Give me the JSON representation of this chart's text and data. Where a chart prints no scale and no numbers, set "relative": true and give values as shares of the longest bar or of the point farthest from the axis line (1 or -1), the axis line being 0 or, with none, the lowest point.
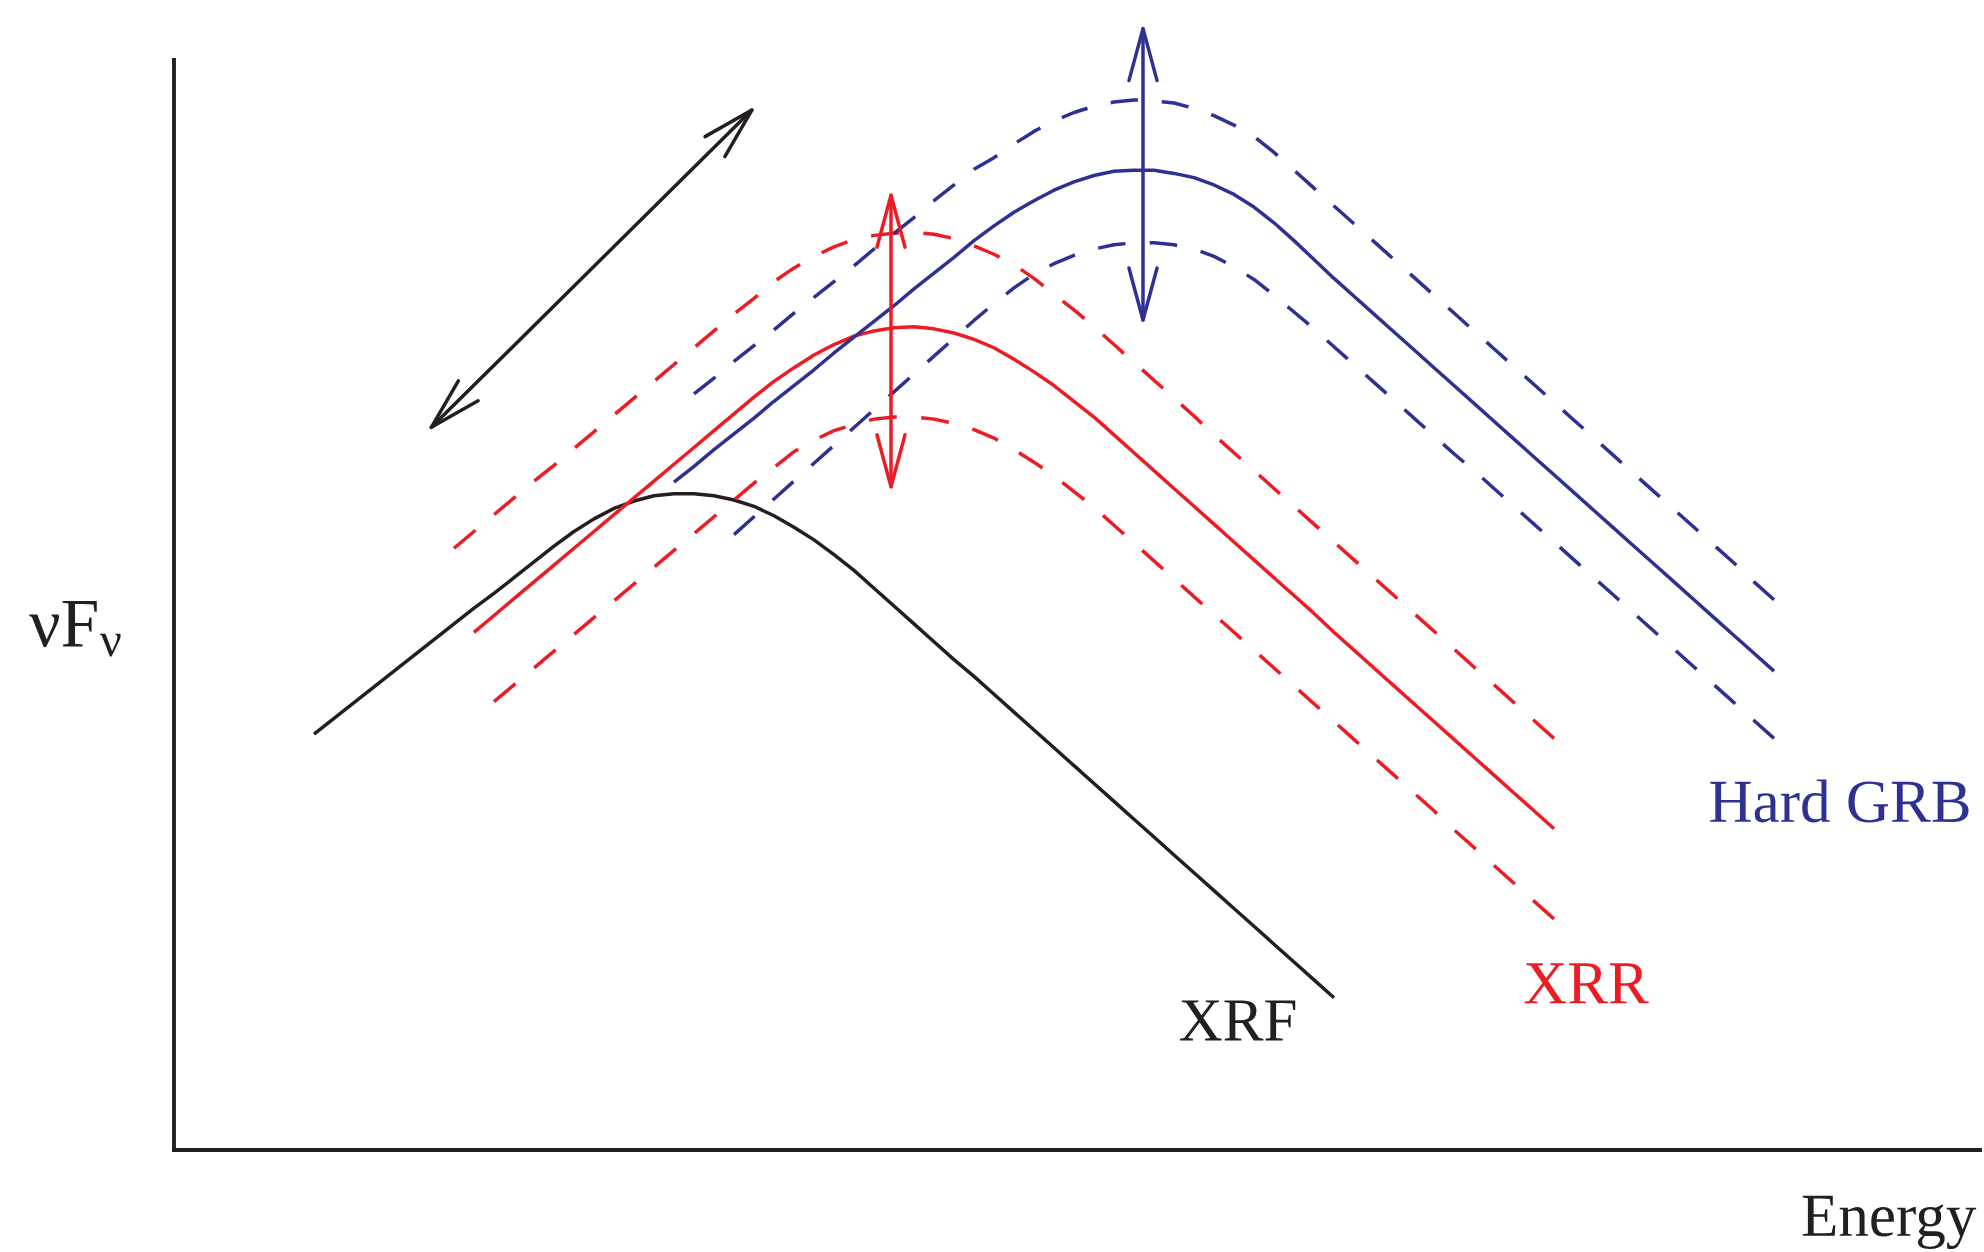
{
  "chart_data": {
    "type": "line",
    "relative": true,
    "xlabel": "Energy",
    "ylabel": "νF$_{ν}$",
    "line_style": "solid",
    "categories": [
      null,
      null,
      null,
      null,
      null,
      null,
      null,
      null,
      null,
      null,
      null,
      null,
      null,
      null,
      null,
      null,
      null,
      null,
      null,
      null,
      null,
      null,
      null,
      null,
      null,
      null,
      null,
      null,
      null,
      null,
      null,
      null,
      null,
      null,
      null,
      null,
      null,
      null,
      null,
      null,
      null,
      null,
      null,
      null,
      null,
      null,
      null,
      null,
      null,
      null,
      null,
      null,
      null,
      null,
      null,
      null,
      null,
      null,
      null,
      null,
      null,
      null,
      null,
      null,
      null,
      null,
      null,
      null,
      null,
      null,
      null,
      null,
      null,
      null
    ],
    "series": [
      {
        "name": "XRF",
        "color": "#231f20",
        "values": [
          0.396,
          0.411,
          0.426,
          0.441,
          0.456,
          0.471,
          0.486,
          0.501,
          0.516,
          0.53,
          0.545,
          0.56,
          0.575,
          0.589,
          0.601,
          0.611,
          0.618,
          0.623,
          0.625,
          0.625,
          0.623,
          0.619,
          0.613,
          0.604,
          0.593,
          0.581,
          0.567,
          0.552,
          0.535,
          0.518,
          0.501,
          0.484,
          0.467,
          0.451,
          0.434,
          0.417,
          0.4,
          0.383,
          0.366,
          0.349,
          0.332,
          0.315,
          0.298,
          0.281,
          0.264,
          0.247,
          0.23,
          0.213,
          0.196,
          0.179,
          0.162,
          0.145,
          null,
          null,
          null,
          null,
          null,
          null,
          null,
          null,
          null,
          null,
          null,
          null,
          null,
          null,
          null,
          null,
          null,
          null,
          null,
          null,
          null,
          null
        ]
      },
      {
        "name": "XRR",
        "color": "#ed1c24",
        "values": [
          null,
          null,
          null,
          null,
          null,
          null,
          null,
          null,
          0.493,
          0.509,
          0.525,
          0.541,
          0.557,
          0.573,
          0.589,
          0.605,
          0.621,
          0.637,
          0.653,
          0.669,
          0.685,
          0.701,
          0.717,
          0.732,
          0.745,
          0.757,
          0.767,
          0.775,
          0.78,
          0.783,
          0.784,
          0.782,
          0.778,
          0.772,
          0.764,
          0.753,
          0.741,
          0.728,
          0.713,
          0.698,
          0.681,
          0.664,
          0.647,
          0.63,
          0.613,
          0.596,
          0.579,
          0.562,
          0.545,
          0.528,
          0.511,
          0.493,
          0.476,
          0.459,
          0.442,
          0.425,
          0.408,
          0.391,
          0.374,
          0.357,
          0.34,
          0.323,
          0.306,
          null,
          null,
          null,
          null,
          null,
          null,
          null,
          null,
          null,
          null,
          null
        ]
      },
      {
        "color": "#ed1c24",
        "line_style": "dashed",
        "values": [
          null,
          null,
          null,
          null,
          null,
          null,
          null,
          0.573,
          0.589,
          0.605,
          0.621,
          0.637,
          0.652,
          0.668,
          0.684,
          0.7,
          0.716,
          0.732,
          0.748,
          0.764,
          0.78,
          0.796,
          0.811,
          0.827,
          0.84,
          0.851,
          0.86,
          0.867,
          0.871,
          0.873,
          0.874,
          0.872,
          0.868,
          0.861,
          0.853,
          0.843,
          0.83,
          0.815,
          0.8,
          0.784,
          0.767,
          0.75,
          0.733,
          0.716,
          0.699,
          0.681,
          0.664,
          0.647,
          0.63,
          0.613,
          0.596,
          0.579,
          0.562,
          0.545,
          0.528,
          0.511,
          0.494,
          0.477,
          0.46,
          0.443,
          0.426,
          0.409,
          0.392,
          null,
          null,
          null,
          null,
          null,
          null,
          null,
          null,
          null,
          null,
          null
        ]
      },
      {
        "color": "#ed1c24",
        "line_style": "dashed",
        "values": [
          null,
          null,
          null,
          null,
          null,
          null,
          null,
          null,
          null,
          0.427,
          0.443,
          0.459,
          0.475,
          0.491,
          0.507,
          0.523,
          0.539,
          0.555,
          0.571,
          0.587,
          0.603,
          0.619,
          0.635,
          0.65,
          0.665,
          0.676,
          0.685,
          0.691,
          0.696,
          0.698,
          0.698,
          0.696,
          0.692,
          0.686,
          0.678,
          0.667,
          0.655,
          0.642,
          0.627,
          0.612,
          0.595,
          0.578,
          0.561,
          0.544,
          0.527,
          0.51,
          0.493,
          0.476,
          0.459,
          0.442,
          0.425,
          0.408,
          0.391,
          0.374,
          0.357,
          0.34,
          0.323,
          0.305,
          0.288,
          0.271,
          0.254,
          0.237,
          0.22,
          null,
          null,
          null,
          null,
          null,
          null,
          null,
          null,
          null,
          null,
          null
        ]
      },
      {
        "name": "Hard GRB",
        "color": "#2e3192",
        "values": [
          null,
          null,
          null,
          null,
          null,
          null,
          null,
          null,
          null,
          null,
          null,
          null,
          null,
          null,
          null,
          null,
          null,
          null,
          0.636,
          0.651,
          0.667,
          0.682,
          0.697,
          0.713,
          0.728,
          0.743,
          0.759,
          0.774,
          0.789,
          0.804,
          0.82,
          0.835,
          0.85,
          0.866,
          0.88,
          0.893,
          0.904,
          0.914,
          0.922,
          0.928,
          0.932,
          0.933,
          0.933,
          0.93,
          0.926,
          0.919,
          0.91,
          0.898,
          0.883,
          0.866,
          0.848,
          0.83,
          0.813,
          0.796,
          0.779,
          0.762,
          0.745,
          0.728,
          0.711,
          0.694,
          0.677,
          0.66,
          0.643,
          0.626,
          0.609,
          0.592,
          0.575,
          0.558,
          0.541,
          0.524,
          0.507,
          0.49,
          0.473,
          0.456
        ]
      },
      {
        "color": "#2e3192",
        "line_style": "dashed",
        "values": [
          null,
          null,
          null,
          null,
          null,
          null,
          null,
          null,
          null,
          null,
          null,
          null,
          null,
          null,
          null,
          null,
          null,
          null,
          null,
          0.72,
          0.735,
          0.751,
          0.766,
          0.781,
          0.797,
          0.812,
          0.827,
          0.842,
          0.858,
          0.873,
          0.888,
          0.904,
          0.919,
          0.934,
          0.945,
          0.958,
          0.97,
          0.98,
          0.988,
          0.994,
          0.998,
          1.0,
          0.999,
          0.997,
          0.992,
          0.985,
          0.976,
          0.965,
          0.95,
          0.933,
          0.916,
          0.899,
          0.882,
          0.865,
          0.848,
          0.831,
          0.814,
          0.797,
          0.78,
          0.763,
          0.746,
          0.729,
          0.712,
          0.695,
          0.678,
          0.661,
          0.644,
          0.627,
          0.61,
          0.593,
          0.576,
          0.559,
          0.541,
          0.524
        ]
      },
      {
        "color": "#2e3192",
        "line_style": "dashed",
        "values": [
          null,
          null,
          null,
          null,
          null,
          null,
          null,
          null,
          null,
          null,
          null,
          null,
          null,
          null,
          null,
          null,
          null,
          null,
          null,
          null,
          null,
          0.586,
          0.603,
          0.62,
          0.637,
          0.654,
          0.671,
          0.688,
          0.705,
          0.722,
          0.739,
          0.756,
          0.773,
          0.79,
          0.806,
          0.821,
          0.834,
          0.844,
          0.852,
          0.858,
          0.862,
          0.864,
          0.864,
          0.862,
          0.858,
          0.851,
          0.841,
          0.829,
          0.814,
          0.798,
          0.782,
          0.765,
          0.748,
          0.731,
          0.714,
          0.697,
          0.68,
          0.663,
          0.647,
          0.63,
          0.613,
          0.596,
          0.579,
          0.562,
          0.545,
          0.528,
          0.511,
          0.494,
          0.477,
          0.46,
          0.443,
          0.426,
          0.409,
          0.392
        ]
      }
    ]
  }
}
